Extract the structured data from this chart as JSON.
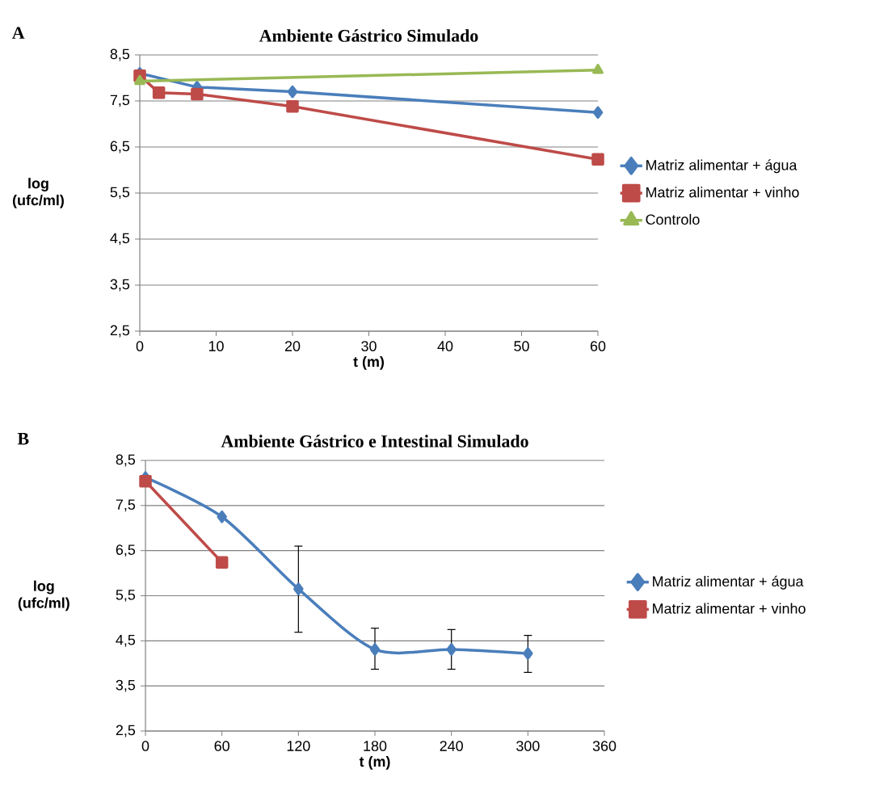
{
  "chart_data": [
    {
      "type": "line",
      "title": "Ambiente Gástrico Simulado",
      "xlabel": "t (m)",
      "ylabel": "log (ufc/ml)",
      "annotations": [
        "A"
      ],
      "xlim": [
        0,
        60
      ],
      "xticks": [
        0,
        10,
        20,
        30,
        40,
        50,
        60
      ],
      "ylim": [
        2.5,
        8.5
      ],
      "yticks": [
        {
          "value": 2.5,
          "label": "2,5"
        },
        {
          "value": 3.5,
          "label": "3,5"
        },
        {
          "value": 4.5,
          "label": "4,5"
        },
        {
          "value": 5.5,
          "label": "5,5"
        },
        {
          "value": 6.5,
          "label": "6,5"
        },
        {
          "value": 7.5,
          "label": "7,5"
        },
        {
          "value": 8.5,
          "label": "8,5"
        }
      ],
      "grid": "y",
      "legend": "right",
      "series": [
        {
          "name": "Matriz  alimentar + água",
          "color": "#4a7ebb",
          "marker": "diamond",
          "x": [
            0,
            2.5,
            7.5,
            20,
            60
          ],
          "values": [
            8.1,
            null,
            7.8,
            7.7,
            7.25
          ]
        },
        {
          "name": "Matriz alimentar + vinho",
          "color": "#be4b48",
          "marker": "square",
          "x": [
            0,
            2.5,
            7.5,
            20,
            60
          ],
          "values": [
            8.05,
            7.68,
            7.65,
            7.38,
            6.23
          ]
        },
        {
          "name": "Controlo",
          "color": "#98b954",
          "marker": "triangle",
          "x": [
            0,
            60
          ],
          "values": [
            7.93,
            8.17
          ]
        }
      ]
    },
    {
      "type": "line",
      "title": "Ambiente Gástrico e Intestinal Simulado",
      "xlabel": "t (m)",
      "ylabel": "log (ufc/ml)",
      "annotations": [
        "B"
      ],
      "xlim": [
        0,
        360
      ],
      "xticks": [
        0,
        60,
        120,
        180,
        240,
        300,
        360
      ],
      "ylim": [
        2.5,
        8.5
      ],
      "yticks": [
        {
          "value": 2.5,
          "label": "2,5"
        },
        {
          "value": 3.5,
          "label": "3,5"
        },
        {
          "value": 4.5,
          "label": "4,5"
        },
        {
          "value": 5.5,
          "label": "5,5"
        },
        {
          "value": 6.5,
          "label": "6,5"
        },
        {
          "value": 7.5,
          "label": "7,5"
        },
        {
          "value": 8.5,
          "label": "8,5"
        }
      ],
      "grid": "y",
      "legend": "right",
      "series": [
        {
          "name": "Matriz  alimentar + água",
          "color": "#4a7ebb",
          "marker": "diamond",
          "x": [
            0,
            60,
            120,
            180,
            240,
            300
          ],
          "values": [
            8.12,
            7.25,
            5.65,
            4.31,
            4.31,
            4.22
          ],
          "errors": [
            null,
            null,
            [
              4.69,
              6.6
            ],
            [
              3.87,
              4.78
            ],
            [
              3.87,
              4.75
            ],
            [
              3.8,
              4.62
            ]
          ]
        },
        {
          "name": "Matriz alimentar + vinho",
          "color": "#be4b48",
          "marker": "square",
          "x": [
            0,
            60
          ],
          "values": [
            8.04,
            6.24
          ]
        }
      ]
    }
  ]
}
